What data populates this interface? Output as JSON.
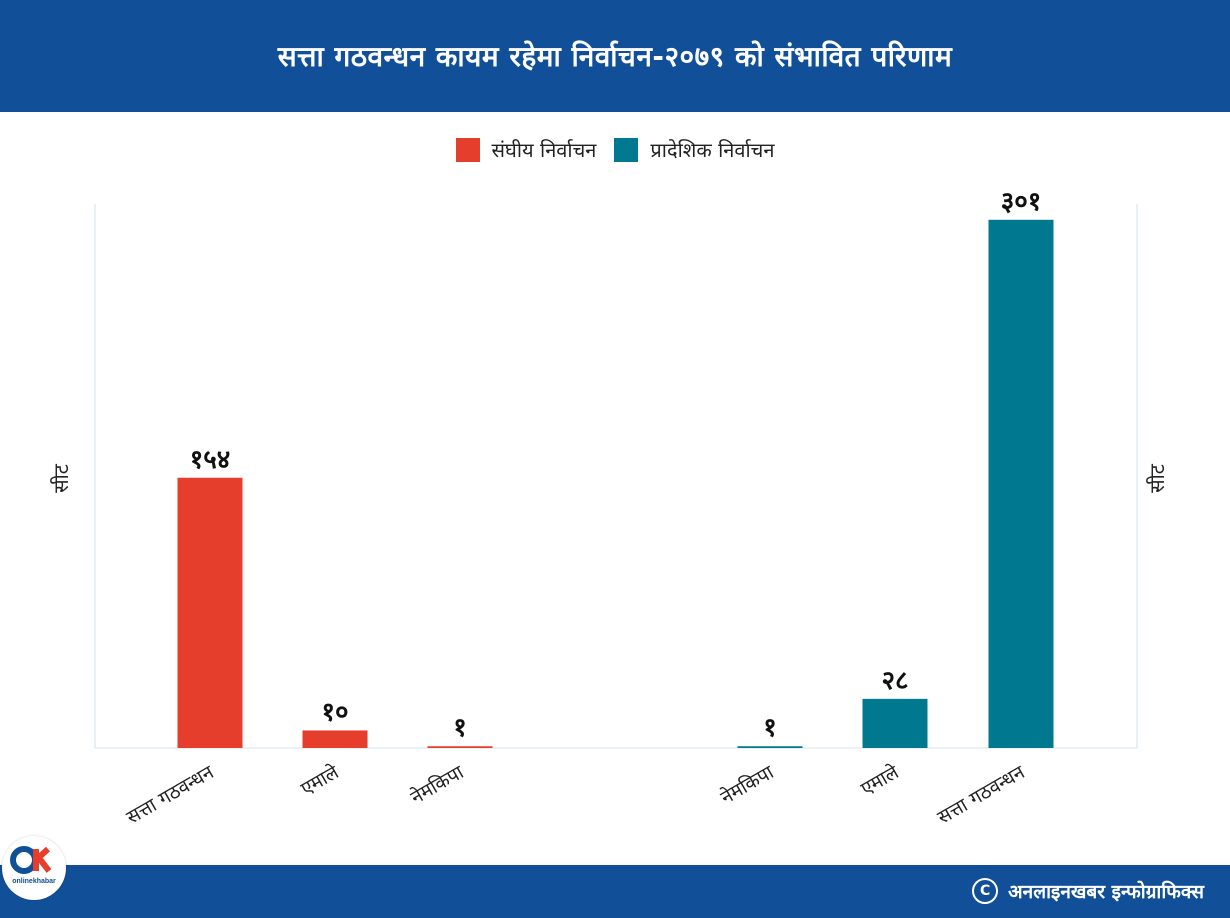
{
  "header": {
    "title": "सत्ता गठवन्धन कायम रहेमा निर्वाचन-२०७९ को संभावित परिणाम"
  },
  "legend": [
    {
      "label": "संघीय निर्वाचन",
      "color": "#e53e2d"
    },
    {
      "label": "प्रादेशिक निर्वाचन",
      "color": "#00788f"
    }
  ],
  "axis": {
    "left_label": "सीट",
    "right_label": "सीट"
  },
  "footer": {
    "credit": "अनलाइनखबर इन्फोग्राफिक्स",
    "logo_text": "onlinekhabar",
    "logo_mark": "OK"
  },
  "chart_data": {
    "type": "bar",
    "groups": [
      {
        "name": "संघीय निर्वाचन",
        "color": "#e53e2d",
        "categories": [
          "सत्ता गठवन्धन",
          "एमाले",
          "नेमकिपा"
        ],
        "values": [
          154,
          10,
          1
        ],
        "value_labels": [
          "१५४",
          "१०",
          "१"
        ]
      },
      {
        "name": "प्रादेशिक निर्वाचन",
        "color": "#00788f",
        "categories": [
          "नेमकिपा",
          "एमाले",
          "सत्ता गठवन्धन"
        ],
        "values": [
          1,
          28,
          301
        ],
        "value_labels": [
          "१",
          "२८",
          "३०१"
        ]
      }
    ],
    "ylabel": "सीट",
    "ylim": [
      0,
      310
    ],
    "grid": false,
    "legend_position": "top-center"
  }
}
